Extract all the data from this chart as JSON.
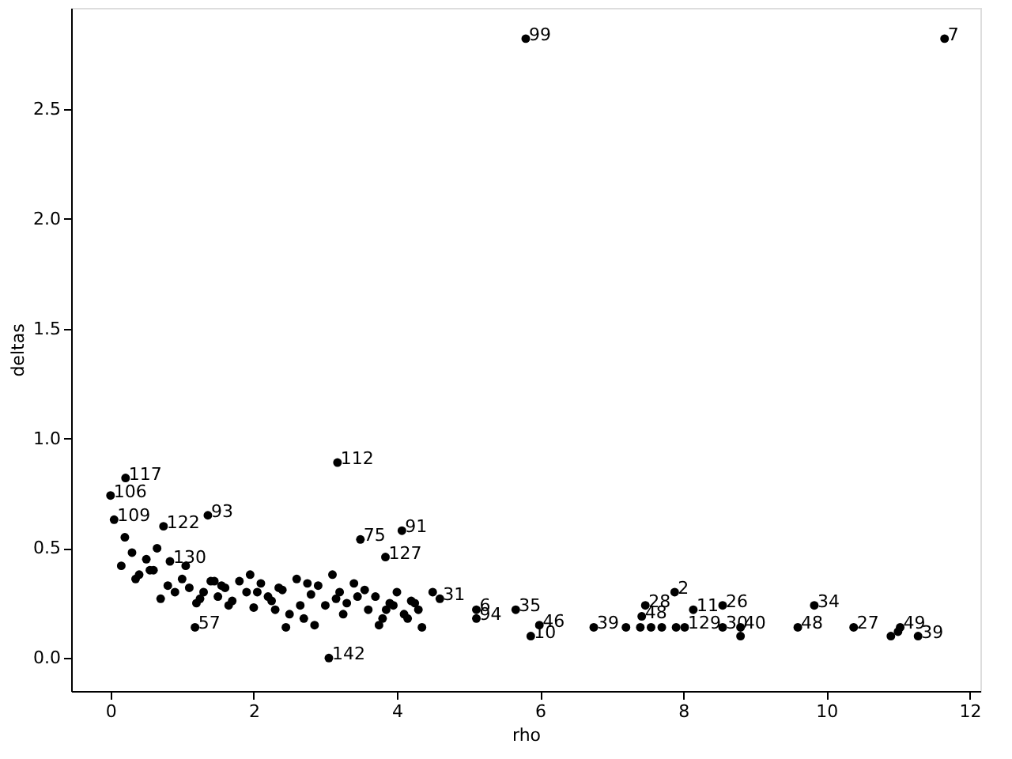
{
  "chart_data": {
    "type": "scatter",
    "xlabel": "rho",
    "ylabel": "deltas",
    "marker": "circle",
    "grid": false,
    "xlim": [
      -0.55,
      12.15
    ],
    "ylim": [
      -0.15,
      2.96
    ],
    "xticks": [
      0,
      2,
      4,
      6,
      8,
      10,
      12
    ],
    "yticks": [
      {
        "value": 0,
        "label": "0.0"
      },
      {
        "value": 0.5,
        "label": "0.5"
      },
      {
        "value": 1,
        "label": "1.0"
      },
      {
        "value": 1.5,
        "label": "1.5"
      },
      {
        "value": 2,
        "label": "2.0"
      },
      {
        "value": 2.5,
        "label": "2.5"
      }
    ],
    "series": [
      {
        "color": "#000000",
        "x": [
          11.65,
          5.8,
          3.17,
          0.21,
          0.0,
          0.05,
          0.74,
          1.36,
          0.83,
          3.49,
          4.07,
          3.84,
          3.05,
          1.18,
          4.6,
          5.11,
          5.11,
          5.66,
          5.99,
          5.87,
          6.75,
          7.88,
          7.47,
          7.42,
          7.2,
          7.4,
          7.55,
          7.7,
          7.9,
          8.02,
          8.14,
          8.55,
          8.55,
          8.8,
          8.8,
          9.6,
          9.83,
          10.38,
          11.03,
          10.9,
          11.0,
          11.28,
          0.15,
          0.3,
          0.4,
          0.5,
          0.6,
          0.7,
          0.9,
          1.0,
          1.1,
          1.2,
          1.3,
          1.4,
          1.5,
          1.6,
          1.7,
          1.8,
          1.9,
          2.0,
          2.1,
          2.2,
          2.3,
          2.4,
          2.5,
          2.6,
          2.7,
          2.8,
          2.9,
          3.0,
          3.1,
          3.2,
          3.3,
          3.4,
          3.6,
          3.7,
          3.8,
          3.9,
          4.0,
          4.1,
          4.2,
          4.3,
          0.35,
          0.55,
          0.8,
          1.25,
          1.45,
          1.65,
          2.05,
          2.25,
          2.45,
          2.65,
          2.85,
          3.25,
          3.45,
          3.75,
          3.95,
          4.15,
          4.35,
          0.2,
          0.65,
          1.05,
          1.55,
          1.95,
          2.35,
          2.75,
          3.15,
          3.55,
          3.85,
          4.25,
          4.5
        ],
        "values": [
          2.82,
          2.82,
          0.89,
          0.82,
          0.74,
          0.63,
          0.6,
          0.65,
          0.44,
          0.54,
          0.58,
          0.46,
          0.0,
          0.14,
          0.27,
          0.22,
          0.18,
          0.22,
          0.15,
          0.1,
          0.14,
          0.3,
          0.24,
          0.19,
          0.14,
          0.14,
          0.14,
          0.14,
          0.14,
          0.14,
          0.22,
          0.24,
          0.14,
          0.1,
          0.14,
          0.14,
          0.24,
          0.14,
          0.14,
          0.1,
          0.12,
          0.1,
          0.42,
          0.48,
          0.38,
          0.45,
          0.4,
          0.27,
          0.3,
          0.36,
          0.32,
          0.25,
          0.3,
          0.35,
          0.28,
          0.32,
          0.26,
          0.35,
          0.3,
          0.23,
          0.34,
          0.28,
          0.22,
          0.31,
          0.2,
          0.36,
          0.18,
          0.29,
          0.33,
          0.24,
          0.38,
          0.3,
          0.25,
          0.34,
          0.22,
          0.28,
          0.18,
          0.25,
          0.3,
          0.2,
          0.26,
          0.22,
          0.36,
          0.4,
          0.33,
          0.27,
          0.35,
          0.24,
          0.3,
          0.26,
          0.14,
          0.24,
          0.15,
          0.2,
          0.28,
          0.15,
          0.24,
          0.18,
          0.14,
          0.55,
          0.5,
          0.42,
          0.33,
          0.38,
          0.32,
          0.34,
          0.27,
          0.31,
          0.22,
          0.25,
          0.3
        ]
      }
    ],
    "annotations": [
      {
        "text": "7",
        "x": 11.65,
        "y": 2.82
      },
      {
        "text": "99",
        "x": 5.8,
        "y": 2.82
      },
      {
        "text": "112",
        "x": 3.17,
        "y": 0.89
      },
      {
        "text": "117",
        "x": 0.21,
        "y": 0.82
      },
      {
        "text": "106",
        "x": 0.0,
        "y": 0.74
      },
      {
        "text": "109",
        "x": 0.05,
        "y": 0.63
      },
      {
        "text": "122",
        "x": 0.74,
        "y": 0.6
      },
      {
        "text": "93",
        "x": 1.36,
        "y": 0.65
      },
      {
        "text": "130",
        "x": 0.83,
        "y": 0.44
      },
      {
        "text": "75",
        "x": 3.49,
        "y": 0.54
      },
      {
        "text": "91",
        "x": 4.07,
        "y": 0.58
      },
      {
        "text": "127",
        "x": 3.84,
        "y": 0.46
      },
      {
        "text": "142",
        "x": 3.05,
        "y": 0.0
      },
      {
        "text": "57",
        "x": 1.18,
        "y": 0.14
      },
      {
        "text": "31",
        "x": 4.6,
        "y": 0.27
      },
      {
        "text": "6",
        "x": 5.11,
        "y": 0.22
      },
      {
        "text": "94",
        "x": 5.11,
        "y": 0.18
      },
      {
        "text": "35",
        "x": 5.66,
        "y": 0.22
      },
      {
        "text": "46",
        "x": 5.99,
        "y": 0.15
      },
      {
        "text": "10",
        "x": 5.87,
        "y": 0.1
      },
      {
        "text": "39",
        "x": 6.75,
        "y": 0.14
      },
      {
        "text": "2",
        "x": 7.88,
        "y": 0.3
      },
      {
        "text": "28",
        "x": 7.47,
        "y": 0.24
      },
      {
        "text": "48",
        "x": 7.42,
        "y": 0.19
      },
      {
        "text": "129",
        "x": 8.02,
        "y": 0.14
      },
      {
        "text": "11",
        "x": 8.14,
        "y": 0.22
      },
      {
        "text": "26",
        "x": 8.55,
        "y": 0.24
      },
      {
        "text": "30",
        "x": 8.55,
        "y": 0.14
      },
      {
        "text": "40",
        "x": 8.8,
        "y": 0.14
      },
      {
        "text": "48",
        "x": 9.6,
        "y": 0.14
      },
      {
        "text": "34",
        "x": 9.83,
        "y": 0.24
      },
      {
        "text": "27",
        "x": 10.38,
        "y": 0.14
      },
      {
        "text": "49",
        "x": 11.03,
        "y": 0.14
      },
      {
        "text": "39",
        "x": 11.28,
        "y": 0.1
      }
    ]
  }
}
